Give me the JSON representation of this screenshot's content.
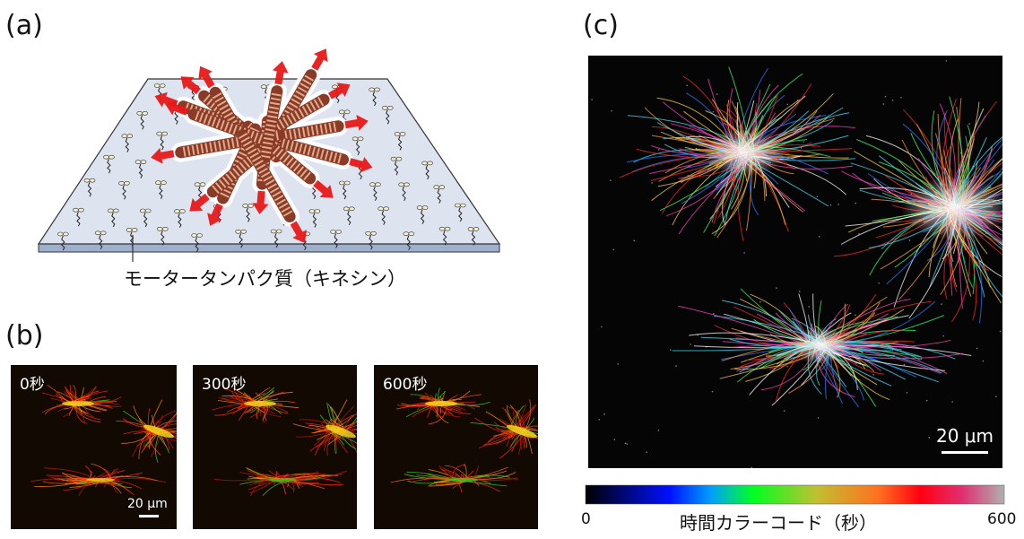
{
  "panels": {
    "a": {
      "label": "(a)",
      "caption": "モータータンパク質（キネシン）"
    },
    "b": {
      "label": "(b)",
      "frames": [
        "0秒",
        "300秒",
        "600秒"
      ],
      "scale": "20 μm"
    },
    "c": {
      "label": "(c)",
      "scale": "20 μm",
      "colorbar": {
        "min": "0",
        "max": "600",
        "label": "時間カラーコード（秒）"
      }
    }
  }
}
